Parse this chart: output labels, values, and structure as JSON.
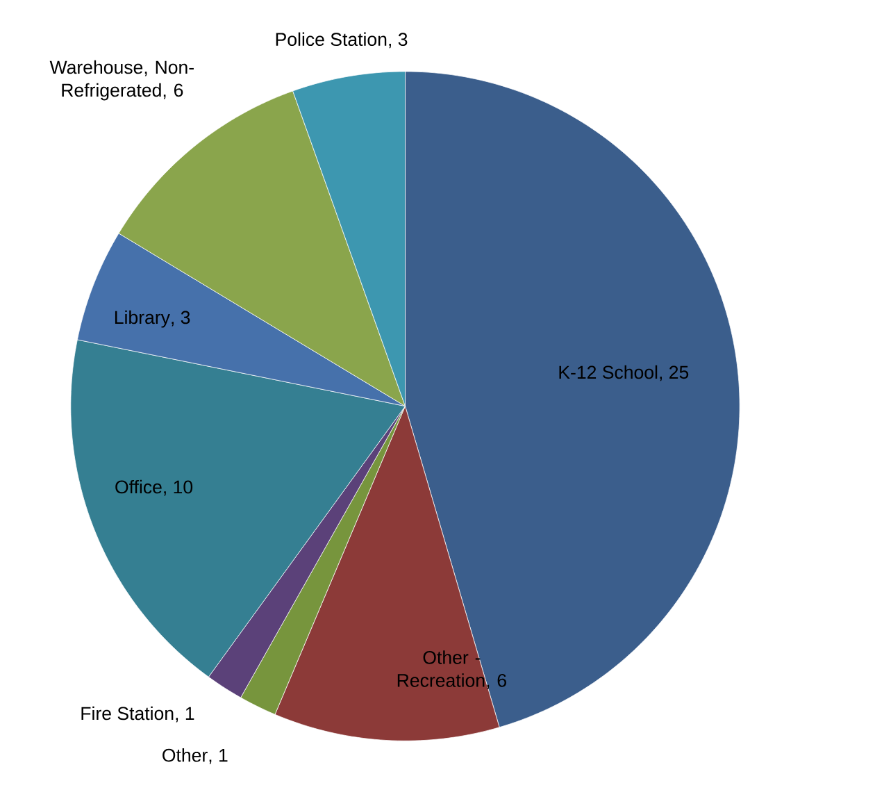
{
  "chart_data": {
    "type": "pie",
    "categories": [
      "K-12 School",
      "Other - Recreation",
      "Other",
      "Fire Station",
      "Office",
      "Library",
      "Warehouse, Non-Refrigerated",
      "Police Station"
    ],
    "values": [
      25,
      6,
      1,
      1,
      10,
      3,
      6,
      3
    ],
    "value_labels": [
      ", 25",
      ", 6",
      ", 1",
      ", 1",
      ", 10",
      ", 3",
      ", 6",
      ", 3"
    ],
    "colors": [
      "#3b5e8c",
      "#8c3a38",
      "#77953d",
      "#5b4179",
      "#357f92",
      "#4671ab",
      "#8aa54c",
      "#3d97b0"
    ]
  }
}
